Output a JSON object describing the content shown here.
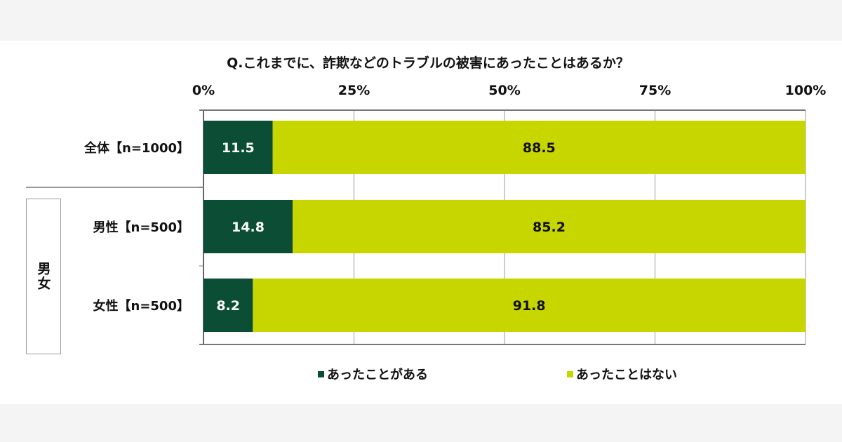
{
  "chart_data": {
    "type": "bar",
    "stacked": true,
    "orientation": "horizontal",
    "title": "Q.これまでに、詐欺などのトラブルの被害にあったことはあるか？",
    "categories": [
      "全体【n=1000】",
      "男性【n=500】",
      "女性【n=500】"
    ],
    "group_label": "男女",
    "series": [
      {
        "name": "あったことがある",
        "color": "#0b4d35",
        "values": [
          11.5,
          14.8,
          8.2
        ]
      },
      {
        "name": "あったことはない",
        "color": "#c8d600",
        "values": [
          88.5,
          85.2,
          91.8
        ]
      }
    ],
    "xlim": [
      0,
      100
    ],
    "xticks": [
      0,
      25,
      50,
      75,
      100
    ],
    "xtick_labels": [
      "0%",
      "25%",
      "50%",
      "75%",
      "100%"
    ],
    "grid": true,
    "legend_placement": "bottom"
  }
}
